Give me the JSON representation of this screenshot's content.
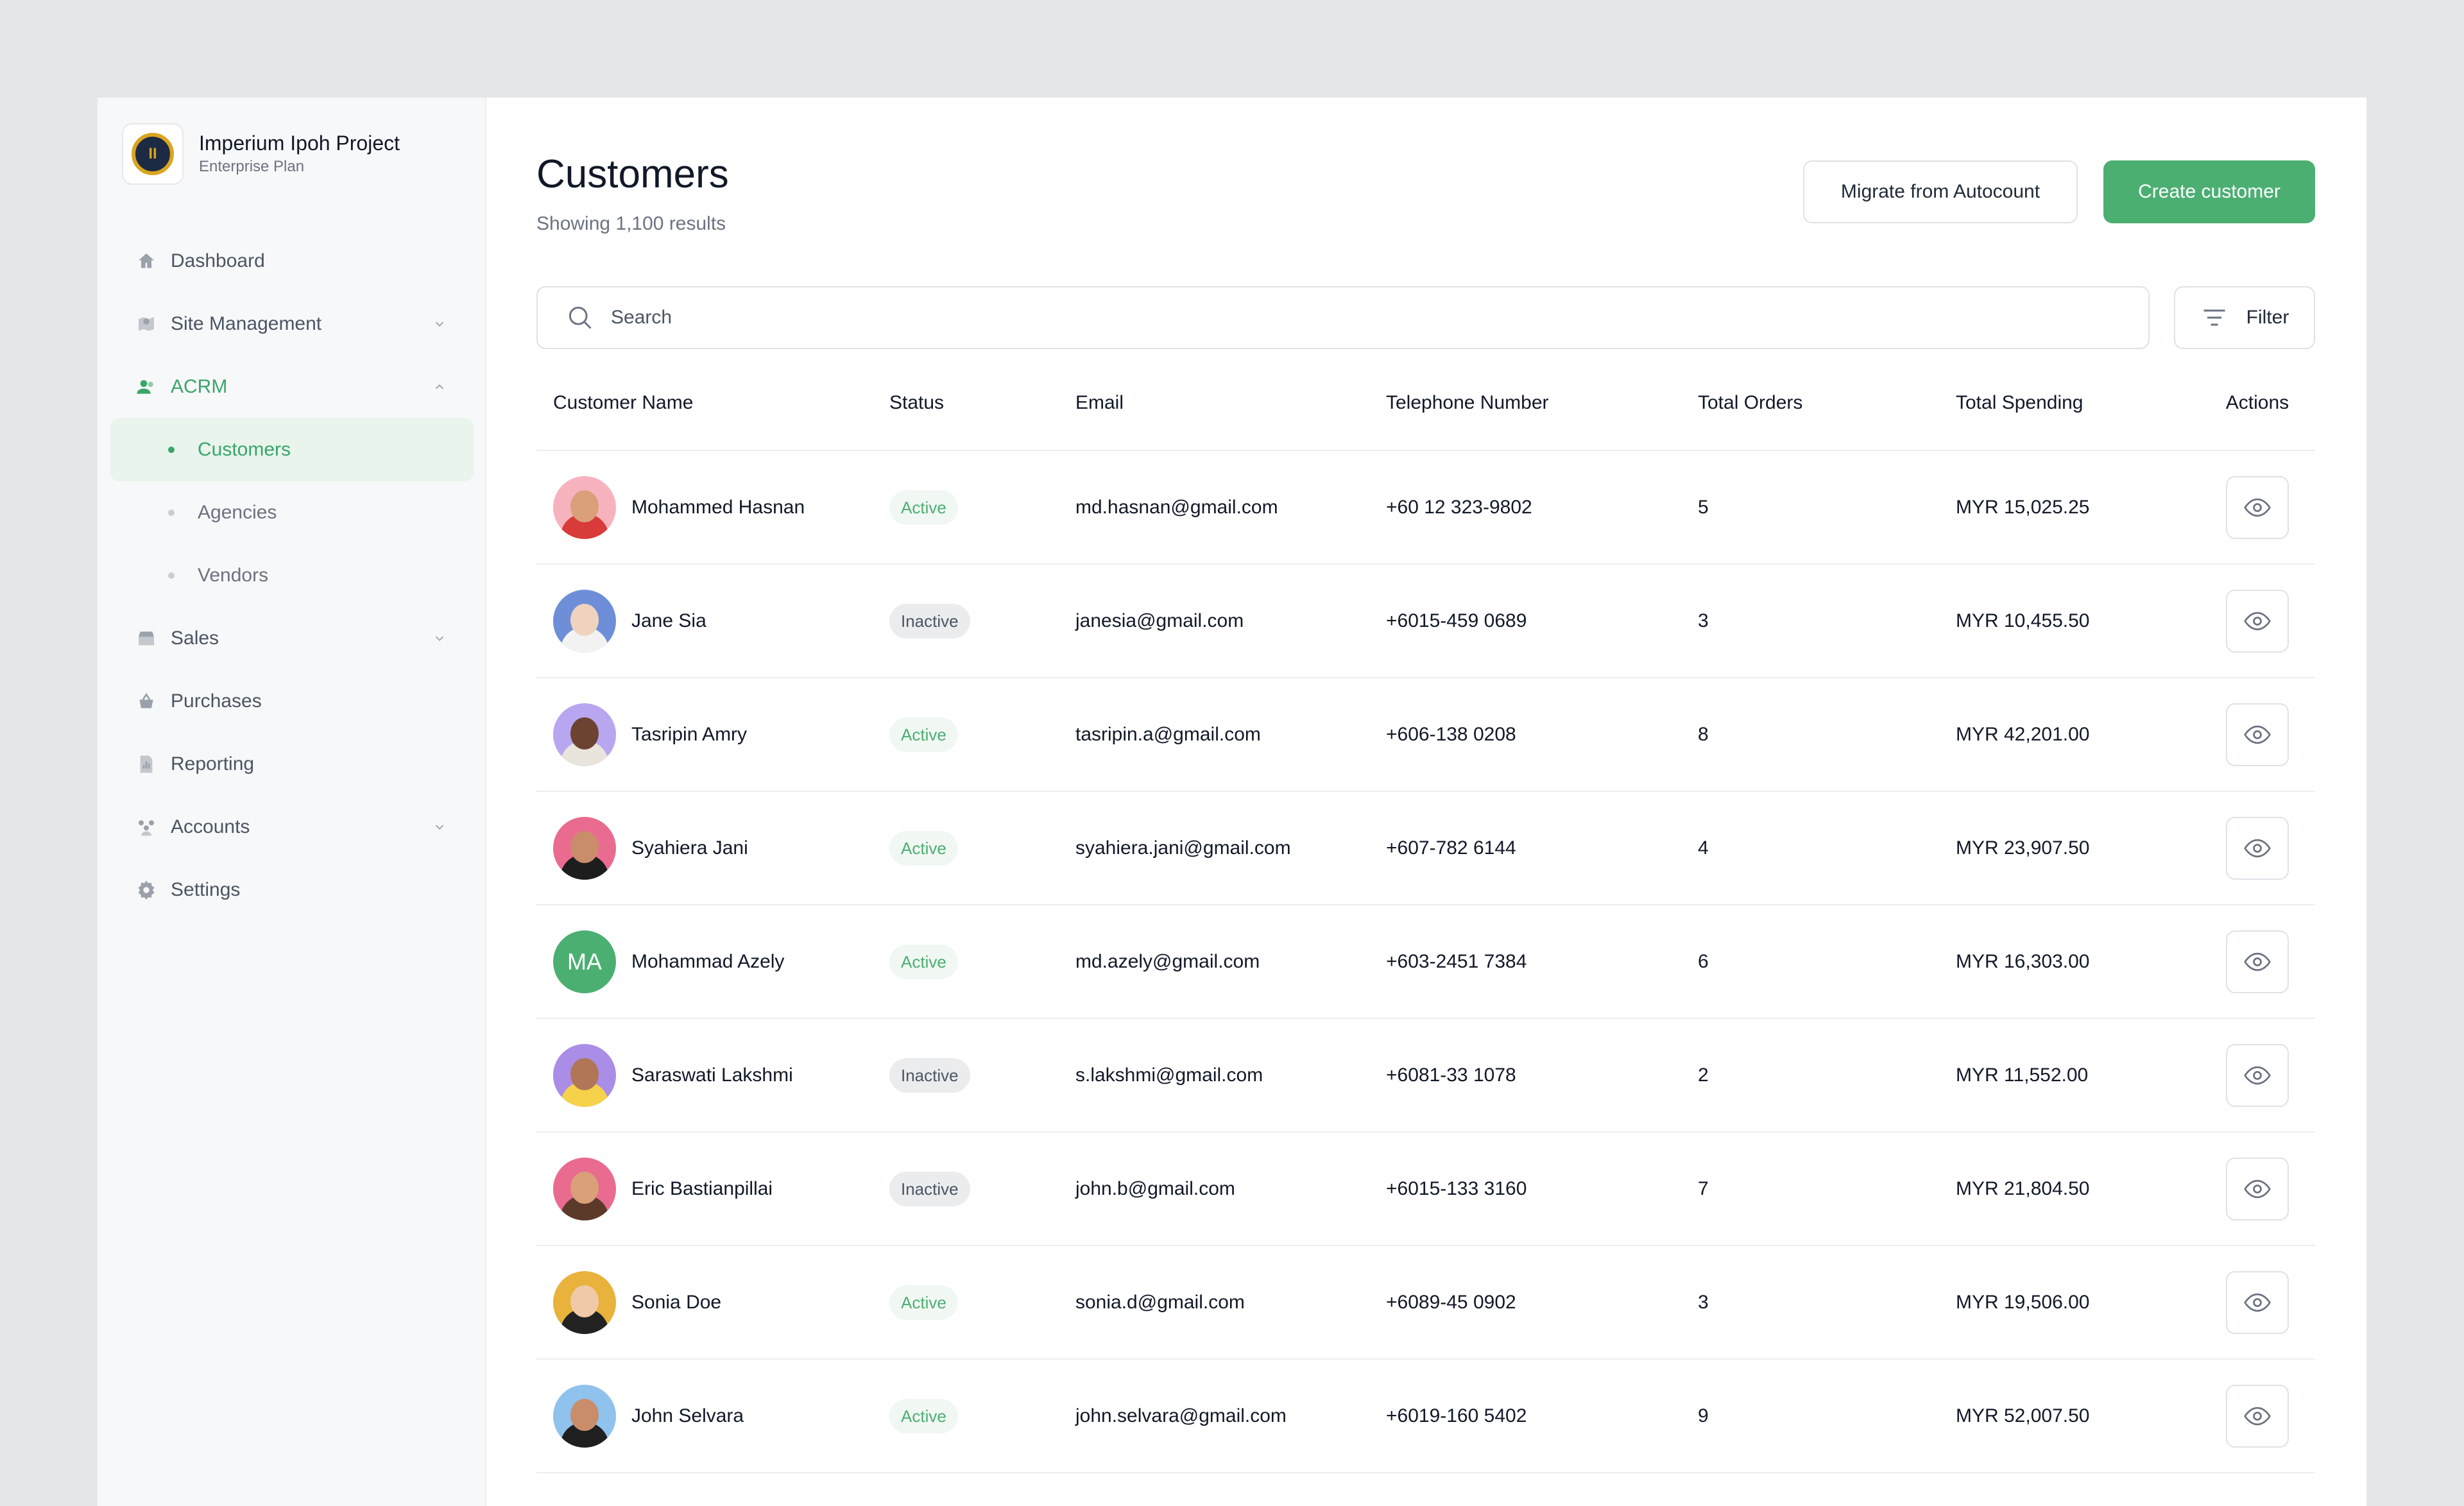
{
  "brand": {
    "name": "Imperium Ipoh Project",
    "plan": "Enterprise Plan"
  },
  "nav": {
    "dashboard": "Dashboard",
    "site_management": "Site Management",
    "acrm": "ACRM",
    "customers": "Customers",
    "agencies": "Agencies",
    "vendors": "Vendors",
    "sales": "Sales",
    "purchases": "Purchases",
    "reporting": "Reporting",
    "accounts": "Accounts",
    "settings": "Settings"
  },
  "page": {
    "title": "Customers",
    "subtitle": "Showing 1,100 results"
  },
  "actions": {
    "migrate": "Migrate from Autocount",
    "create": "Create customer",
    "filter": "Filter"
  },
  "search": {
    "placeholder": "Search"
  },
  "table": {
    "headers": {
      "name": "Customer Name",
      "status": "Status",
      "email": "Email",
      "tel": "Telephone Number",
      "orders": "Total Orders",
      "spending": "Total Spending",
      "actions": "Actions"
    },
    "rows": [
      {
        "name": "Mohammed Hasnan",
        "status": "Active",
        "email": "md.hasnan@gmail.com",
        "tel": "+60 12 323-9802",
        "orders": "5",
        "spending": "MYR 15,025.25",
        "avatar_bg": "#f7b3bd",
        "skin": "#d9a07a",
        "shirt": "#d93a3a"
      },
      {
        "name": "Jane Sia",
        "status": "Inactive",
        "email": "janesia@gmail.com",
        "tel": "+6015-459 0689",
        "orders": "3",
        "spending": "MYR 10,455.50",
        "avatar_bg": "#6e8fd8",
        "skin": "#f0d3bf",
        "shirt": "#f2f2f2"
      },
      {
        "name": "Tasripin Amry",
        "status": "Active",
        "email": "tasripin.a@gmail.com",
        "tel": "+606-138 0208",
        "orders": "8",
        "spending": "MYR 42,201.00",
        "avatar_bg": "#b9a6f0",
        "skin": "#6b4330",
        "shirt": "#e9e4dc"
      },
      {
        "name": "Syahiera Jani",
        "status": "Active",
        "email": "syahiera.jani@gmail.com",
        "tel": "+607-782 6144",
        "orders": "4",
        "spending": "MYR 23,907.50",
        "avatar_bg": "#e96b8f",
        "skin": "#c98d6a",
        "shirt": "#1d1d1d"
      },
      {
        "name": "Mohammad Azely",
        "status": "Active",
        "email": "md.azely@gmail.com",
        "tel": "+603-2451 7384",
        "orders": "6",
        "spending": "MYR 16,303.00",
        "initials": "MA"
      },
      {
        "name": "Saraswati Lakshmi",
        "status": "Inactive",
        "email": "s.lakshmi@gmail.com",
        "tel": "+6081-33 1078",
        "orders": "2",
        "spending": "MYR 11,552.00",
        "avatar_bg": "#a98de6",
        "skin": "#b07656",
        "shirt": "#f5d24a"
      },
      {
        "name": "Eric Bastianpillai",
        "status": "Inactive",
        "email": "john.b@gmail.com",
        "tel": "+6015-133 3160",
        "orders": "7",
        "spending": "MYR 21,804.50",
        "avatar_bg": "#e96b8f",
        "skin": "#d9a07a",
        "shirt": "#5b3a2a"
      },
      {
        "name": "Sonia Doe",
        "status": "Active",
        "email": "sonia.d@gmail.com",
        "tel": "+6089-45 0902",
        "orders": "3",
        "spending": "MYR 19,506.00",
        "avatar_bg": "#e8b23c",
        "skin": "#f0c9a8",
        "shirt": "#222222"
      },
      {
        "name": "John Selvara",
        "status": "Active",
        "email": "john.selvara@gmail.com",
        "tel": "+6019-160 5402",
        "orders": "9",
        "spending": "MYR 52,007.50",
        "avatar_bg": "#8fc2ec",
        "skin": "#c98d6a",
        "shirt": "#1f1f1f"
      }
    ]
  },
  "colors": {
    "accent": "#4caf72",
    "active_badge_bg": "#f1f7f3",
    "inactive_badge_bg": "#eaecee"
  }
}
